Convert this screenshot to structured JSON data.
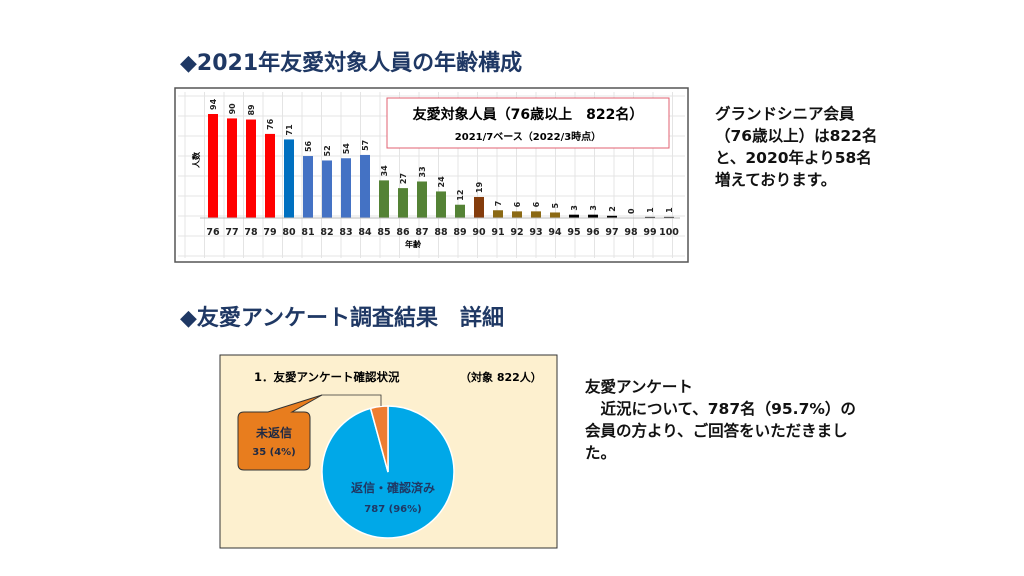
{
  "section1_title": "◆2021年友愛対象人員の年齢構成",
  "section2_title": "◆友愛アンケート調査結果　詳細",
  "note1": "グランドシニア会員\n（76歳以上）は822名\nと、2020年より58名\n増えております。",
  "note2": "友愛アンケート\n　近況について、787名（95.7%）の\n会員の方より、ご回答をいただきまし\nた。",
  "chart_data": [
    {
      "type": "bar",
      "legend_title": "友愛対象人員（76歳以上　822名）",
      "legend_subtitle": "2021/7ベース（2022/3時点）",
      "xlabel": "年齢",
      "ylabel": "人数",
      "categories": [
        "76",
        "77",
        "78",
        "79",
        "80",
        "81",
        "82",
        "83",
        "84",
        "85",
        "86",
        "87",
        "88",
        "89",
        "90",
        "91",
        "92",
        "93",
        "94",
        "95",
        "96",
        "97",
        "98",
        "99",
        "100"
      ],
      "values": [
        94,
        90,
        89,
        76,
        71,
        56,
        52,
        54,
        57,
        34,
        27,
        33,
        24,
        12,
        19,
        7,
        6,
        6,
        5,
        3,
        3,
        2,
        0,
        1,
        1
      ],
      "colors": [
        "#ff0000",
        "#ff0000",
        "#ff0000",
        "#ff0000",
        "#0070c0",
        "#4472c4",
        "#4472c4",
        "#4472c4",
        "#4472c4",
        "#548235",
        "#548235",
        "#548235",
        "#548235",
        "#548235",
        "#843c0c",
        "#8b6914",
        "#8b6914",
        "#8b6914",
        "#8b6914",
        "#000000",
        "#000000",
        "#000000",
        "#000000",
        "#000000",
        "#000000"
      ],
      "grid": true
    },
    {
      "type": "pie",
      "title": "1．友愛アンケート確認状況",
      "subtitle": "（対象 822人）",
      "slices": [
        {
          "name": "返信・確認済み",
          "value": 787,
          "label": "787 (96%)",
          "color": "#00a8e8"
        },
        {
          "name": "未返信",
          "value": 35,
          "label": "35 (4%)",
          "color": "#ed7d31"
        }
      ]
    }
  ]
}
